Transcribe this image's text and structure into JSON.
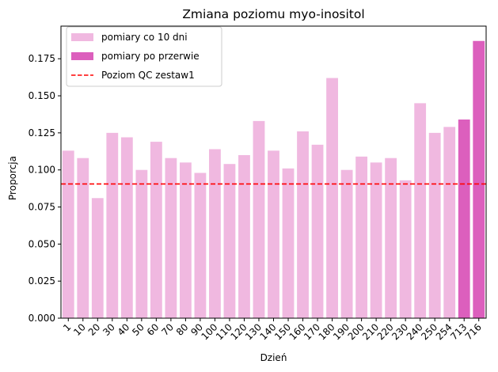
{
  "chart_data": {
    "type": "bar",
    "title": "Zmiana poziomu myo-inositol",
    "xlabel": "Dzień",
    "ylabel": "Proporcja",
    "ylim": [
      0,
      0.197
    ],
    "yticks": [
      "0.000",
      "0.025",
      "0.050",
      "0.075",
      "0.100",
      "0.125",
      "0.150",
      "0.175"
    ],
    "categories": [
      "1",
      "10",
      "20",
      "30",
      "40",
      "50",
      "60",
      "70",
      "80",
      "90",
      "100",
      "110",
      "120",
      "130",
      "140",
      "150",
      "160",
      "170",
      "180",
      "190",
      "200",
      "210",
      "220",
      "230",
      "240",
      "250",
      "254",
      "713",
      "716"
    ],
    "series": [
      {
        "name": "pomiary co 10 dni",
        "color": "#f0b8e0",
        "values": [
          0.113,
          0.108,
          0.081,
          0.125,
          0.122,
          0.1,
          0.119,
          0.108,
          0.105,
          0.098,
          0.114,
          0.104,
          0.11,
          0.133,
          0.113,
          0.101,
          0.126,
          0.117,
          0.162,
          0.1,
          0.109,
          0.105,
          0.108,
          0.093,
          0.145,
          0.125,
          0.129,
          null,
          null
        ]
      },
      {
        "name": "pomiary po przerwie",
        "color": "#dc5fbd",
        "values": [
          null,
          null,
          null,
          null,
          null,
          null,
          null,
          null,
          null,
          null,
          null,
          null,
          null,
          null,
          null,
          null,
          null,
          null,
          null,
          null,
          null,
          null,
          null,
          null,
          null,
          null,
          null,
          0.134,
          0.187
        ]
      }
    ],
    "reference_line": {
      "name": "Poziom QC zestaw1",
      "value": 0.0905,
      "color": "#ff0000",
      "style": "dashed"
    },
    "legend_position": "top-left",
    "grid": false
  }
}
